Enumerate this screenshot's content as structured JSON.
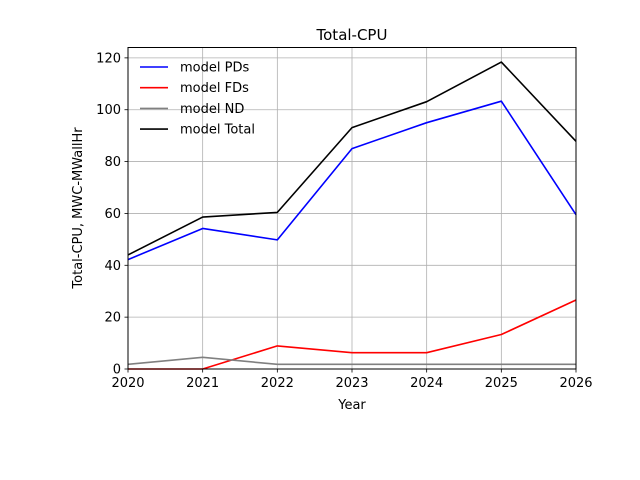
{
  "chart_data": {
    "type": "line",
    "title": "Total-CPU",
    "xlabel": "Year",
    "ylabel": "Total-CPU, MWC-MWallHr",
    "xlim": [
      2020,
      2026
    ],
    "ylim": [
      0,
      124
    ],
    "x_ticks": [
      2020,
      2021,
      2022,
      2023,
      2024,
      2025,
      2026
    ],
    "y_ticks": [
      0,
      20,
      40,
      60,
      80,
      100,
      120
    ],
    "grid": true,
    "legend_position": "top-left",
    "x": [
      2020,
      2021,
      2022,
      2023,
      2024,
      2025,
      2026
    ],
    "series": [
      {
        "name": "model PDs",
        "color": "#0000ff",
        "values": [
          42.2,
          54.2,
          49.8,
          85.0,
          95.0,
          103.3,
          59.5
        ]
      },
      {
        "name": "model FDs",
        "color": "#ff0000",
        "values": [
          0.0,
          0.0,
          8.9,
          6.3,
          6.3,
          13.3,
          26.6
        ]
      },
      {
        "name": "model ND",
        "color": "#808080",
        "values": [
          1.8,
          4.5,
          1.8,
          1.8,
          1.8,
          1.8,
          1.8
        ]
      },
      {
        "name": "model Total",
        "color": "#000000",
        "values": [
          44.0,
          58.6,
          60.4,
          93.1,
          103.1,
          118.4,
          87.8
        ]
      }
    ]
  }
}
